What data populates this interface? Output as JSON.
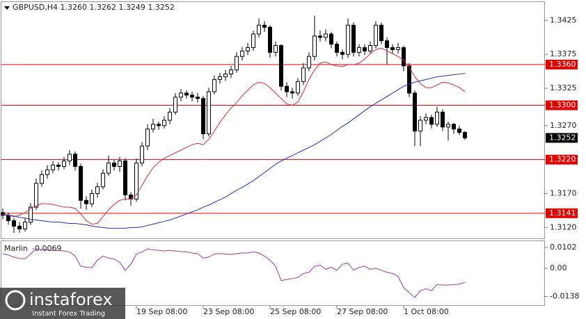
{
  "chart_data": [
    {
      "type": "candlestick",
      "header": "GBPUSD,H4  1.3260 1.3262 1.3249 1.3252",
      "categories": [
        null,
        null,
        null,
        null,
        null,
        null,
        null,
        null,
        null,
        null,
        null,
        null,
        null,
        null,
        null,
        null,
        null,
        null,
        null,
        null,
        null,
        null,
        null,
        null,
        "19 Sep 08:00",
        null,
        null,
        null,
        null,
        null,
        null,
        null,
        null,
        null,
        null,
        null,
        "23 Sep 08:00",
        null,
        null,
        null,
        null,
        null,
        null,
        null,
        null,
        null,
        null,
        null,
        "25 Sep 08:00",
        null,
        null,
        null,
        null,
        null,
        null,
        null,
        null,
        null,
        null,
        null,
        "27 Sep 08:00",
        null,
        null,
        null,
        null,
        null,
        null,
        null,
        null,
        null,
        null,
        null,
        "1 Oct 08:00",
        null,
        null,
        null,
        null,
        null,
        null,
        null,
        null,
        null,
        null,
        null
      ],
      "open": [
        1.3142,
        1.3138,
        1.313,
        1.3122,
        1.3118,
        1.3128,
        1.315,
        1.3185,
        1.3198,
        1.3205,
        1.3212,
        1.321,
        1.3218,
        1.3228,
        1.321,
        1.316,
        1.3155,
        1.317,
        1.318,
        1.32,
        1.3215,
        1.321,
        1.3218,
        1.3168,
        1.3162,
        1.3215,
        1.324,
        1.3265,
        1.3272,
        1.327,
        1.3278,
        1.329,
        1.3312,
        1.3318,
        1.3315,
        1.3312,
        1.331,
        1.3258,
        1.332,
        1.3338,
        1.3342,
        1.3346,
        1.3352,
        1.3372,
        1.338,
        1.3385,
        1.3405,
        1.3418,
        1.3415,
        1.3378,
        1.3388,
        1.3328,
        1.332,
        1.3318,
        1.3335,
        1.3355,
        1.3372,
        1.3402,
        1.34,
        1.3405,
        1.339,
        1.3378,
        1.3375,
        1.3418,
        1.3378,
        1.3385,
        1.338,
        1.3388,
        1.3418,
        1.3395,
        1.3385,
        1.3382,
        1.3385,
        1.3358,
        1.3318,
        1.3262,
        1.3278,
        1.3282,
        1.3272,
        1.329,
        1.3268,
        1.3272,
        1.3265,
        1.326
      ],
      "high": [
        1.3148,
        1.3142,
        1.3134,
        1.3128,
        1.3134,
        1.3156,
        1.3192,
        1.3204,
        1.3212,
        1.3218,
        1.3216,
        1.3224,
        1.3234,
        1.3232,
        1.3214,
        1.3166,
        1.3176,
        1.3186,
        1.3206,
        1.3226,
        1.322,
        1.3224,
        1.3222,
        1.3172,
        1.3222,
        1.3246,
        1.3272,
        1.328,
        1.3276,
        1.3284,
        1.3296,
        1.3318,
        1.3324,
        1.3322,
        1.332,
        1.3318,
        1.3314,
        1.3326,
        1.3344,
        1.3348,
        1.3352,
        1.3358,
        1.3378,
        1.3386,
        1.3392,
        1.341,
        1.3428,
        1.3424,
        1.3418,
        1.3394,
        1.339,
        1.3334,
        1.3326,
        1.334,
        1.3362,
        1.3378,
        1.3432,
        1.341,
        1.3412,
        1.3408,
        1.3394,
        1.3382,
        1.3428,
        1.3422,
        1.339,
        1.339,
        1.3394,
        1.3424,
        1.3422,
        1.34,
        1.339,
        1.3392,
        1.3388,
        1.3362,
        1.3322,
        1.3284,
        1.3288,
        1.3286,
        1.3298,
        1.3294,
        1.3276,
        1.3274,
        1.327,
        1.3262
      ],
      "low": [
        1.3132,
        1.3124,
        1.3112,
        1.3112,
        1.3114,
        1.3124,
        1.3146,
        1.318,
        1.3192,
        1.32,
        1.3204,
        1.3206,
        1.3212,
        1.3204,
        1.3148,
        1.3146,
        1.315,
        1.3164,
        1.3176,
        1.3196,
        1.3204,
        1.3202,
        1.316,
        1.3152,
        1.3158,
        1.321,
        1.3234,
        1.326,
        1.3264,
        1.3266,
        1.3272,
        1.3286,
        1.3306,
        1.331,
        1.3306,
        1.3304,
        1.325,
        1.3254,
        1.3316,
        1.3332,
        1.3336,
        1.334,
        1.3348,
        1.3366,
        1.3374,
        1.338,
        1.34,
        1.3408,
        1.337,
        1.3372,
        1.3322,
        1.3312,
        1.331,
        1.3314,
        1.333,
        1.335,
        1.3366,
        1.3394,
        1.3394,
        1.3384,
        1.3372,
        1.3368,
        1.337,
        1.3372,
        1.3372,
        1.3374,
        1.3376,
        1.3384,
        1.339,
        1.336,
        1.3376,
        1.3376,
        1.335,
        1.3312,
        1.324,
        1.324,
        1.3272,
        1.3266,
        1.3268,
        1.3262,
        1.3248,
        1.3258,
        1.3256,
        1.3249
      ],
      "close": [
        1.3138,
        1.313,
        1.3122,
        1.3118,
        1.3128,
        1.315,
        1.3185,
        1.3198,
        1.3205,
        1.3212,
        1.321,
        1.3218,
        1.3228,
        1.321,
        1.316,
        1.3155,
        1.317,
        1.318,
        1.32,
        1.3215,
        1.321,
        1.3218,
        1.3168,
        1.3162,
        1.3215,
        1.324,
        1.3265,
        1.3272,
        1.327,
        1.3278,
        1.329,
        1.3312,
        1.3318,
        1.3315,
        1.3312,
        1.331,
        1.3258,
        1.332,
        1.3338,
        1.3342,
        1.3346,
        1.3352,
        1.3372,
        1.338,
        1.3385,
        1.3405,
        1.3418,
        1.3415,
        1.3378,
        1.3388,
        1.3328,
        1.332,
        1.3318,
        1.3335,
        1.3355,
        1.3372,
        1.3402,
        1.34,
        1.3405,
        1.339,
        1.3378,
        1.3375,
        1.3418,
        1.3378,
        1.3385,
        1.338,
        1.3388,
        1.3418,
        1.3395,
        1.3385,
        1.3382,
        1.3385,
        1.3358,
        1.3318,
        1.3262,
        1.3278,
        1.3282,
        1.3272,
        1.329,
        1.3268,
        1.3272,
        1.3265,
        1.326,
        1.3252
      ],
      "series": [
        {
          "color": "#d42a3a",
          "values": [
            1.314,
            1.3138,
            1.3136,
            1.3138,
            1.3142,
            1.3148,
            1.3152,
            1.3155,
            1.3155,
            1.3154,
            1.3152,
            1.315,
            1.315,
            1.3148,
            1.314,
            1.313,
            1.3125,
            1.3126,
            1.3136,
            1.3146,
            1.3154,
            1.316,
            1.3162,
            1.3162,
            1.3168,
            1.3182,
            1.3196,
            1.3208,
            1.3216,
            1.3222,
            1.3226,
            1.323,
            1.3234,
            1.3238,
            1.3242,
            1.3244,
            1.3242,
            1.325,
            1.3262,
            1.3275,
            1.3286,
            1.3296,
            1.3304,
            1.3314,
            1.3322,
            1.333,
            1.3334,
            1.3332,
            1.3326,
            1.3318,
            1.331,
            1.3302,
            1.33,
            1.3305,
            1.332,
            1.3338,
            1.3352,
            1.3362,
            1.3364,
            1.336,
            1.3358,
            1.3357,
            1.336,
            1.336,
            1.3362,
            1.3368,
            1.3376,
            1.3382,
            1.3384,
            1.338,
            1.3376,
            1.3372,
            1.3366,
            1.3356,
            1.3342,
            1.3332,
            1.3326,
            1.3326,
            1.333,
            1.3334,
            1.3333,
            1.333,
            1.3326,
            1.332
          ]
        },
        {
          "color": "#2030c0",
          "values": [
            1.3139,
            1.3138,
            1.3137,
            1.3135,
            1.3134,
            1.3132,
            1.3131,
            1.313,
            1.3129,
            1.3128,
            1.3128,
            1.3127,
            1.3126,
            1.3126,
            1.3125,
            1.3124,
            1.3122,
            1.3121,
            1.312,
            1.3119,
            1.3119,
            1.3119,
            1.3119,
            1.312,
            1.312,
            1.3121,
            1.3123,
            1.3125,
            1.3127,
            1.3129,
            1.3131,
            1.3134,
            1.3137,
            1.314,
            1.3143,
            1.3146,
            1.315,
            1.3153,
            1.3157,
            1.3161,
            1.3165,
            1.317,
            1.3175,
            1.3179,
            1.3184,
            1.3189,
            1.3195,
            1.3201,
            1.3207,
            1.3213,
            1.3218,
            1.3222,
            1.3226,
            1.323,
            1.3234,
            1.3238,
            1.3242,
            1.3247,
            1.3252,
            1.3257,
            1.3263,
            1.3269,
            1.3274,
            1.328,
            1.3286,
            1.3292,
            1.3298,
            1.3303,
            1.3308,
            1.3313,
            1.3318,
            1.3323,
            1.3328,
            1.3331,
            1.3334,
            1.3336,
            1.3338,
            1.334,
            1.3342,
            1.3343,
            1.3344,
            1.3345,
            1.3346,
            1.3347
          ]
        }
      ],
      "levels": [
        {
          "value": 1.336,
          "label": "1.3360"
        },
        {
          "value": 1.33,
          "label": "1.3300"
        },
        {
          "value": 1.322,
          "label": "1.3220"
        },
        {
          "value": 1.3141,
          "label": "1.3141"
        }
      ],
      "level_color": "#e00000",
      "ylim": [
        1.3104,
        1.3452
      ],
      "yticks": [
        1.3425,
        1.3375,
        1.3325,
        {
          "value": 1.327,
          "label": "1.3270"
        },
        {
          "value": 1.317,
          "label": "1.3170"
        },
        {
          "value": 1.312,
          "label": "1.3120"
        }
      ]
    },
    {
      "type": "line",
      "name": "Marlin",
      "color": "#9c3a9c",
      "values": [
        0.0071,
        0.0065,
        0.0055,
        0.0048,
        0.0047,
        0.007,
        0.0095,
        0.0092,
        0.009,
        0.0088,
        0.0088,
        0.0085,
        0.008,
        0.006,
        0.001,
        0.0005,
        0.0003,
        0.004,
        0.006,
        0.005,
        0.0045,
        0.003,
        -0.001,
        0.002,
        0.007,
        0.008,
        0.0095,
        0.009,
        0.0088,
        0.0085,
        0.0088,
        0.0085,
        0.0082,
        0.008,
        0.0075,
        0.0072,
        0.005,
        0.0055,
        0.007,
        0.0072,
        0.007,
        0.0068,
        0.0072,
        0.0075,
        0.0075,
        0.008,
        0.0075,
        0.006,
        0.004,
        0.001,
        -0.006,
        -0.0055,
        -0.005,
        -0.0045,
        -0.0025,
        -0.002,
        0.001,
        0.0015,
        -0.0005,
        0.0005,
        -0.001,
        0.002,
        0.0025,
        -0.001,
        0.0005,
        0.001,
        -0.0005,
        0.0,
        -0.001,
        -0.002,
        -0.0025,
        -0.004,
        -0.0095,
        -0.012,
        -0.0143,
        -0.011,
        -0.01,
        -0.011,
        -0.008,
        -0.0082,
        -0.0082,
        -0.008,
        -0.0078,
        -0.0069
      ],
      "ylim": [
        -0.0184,
        0.0133
      ],
      "yticks": [
        0.0102,
        {
          "value": 0,
          "label": "0.00"
        },
        -0.0138
      ]
    }
  ],
  "watermark": {
    "brand": "instaforex",
    "tagline": "Instant Forex Trading"
  }
}
